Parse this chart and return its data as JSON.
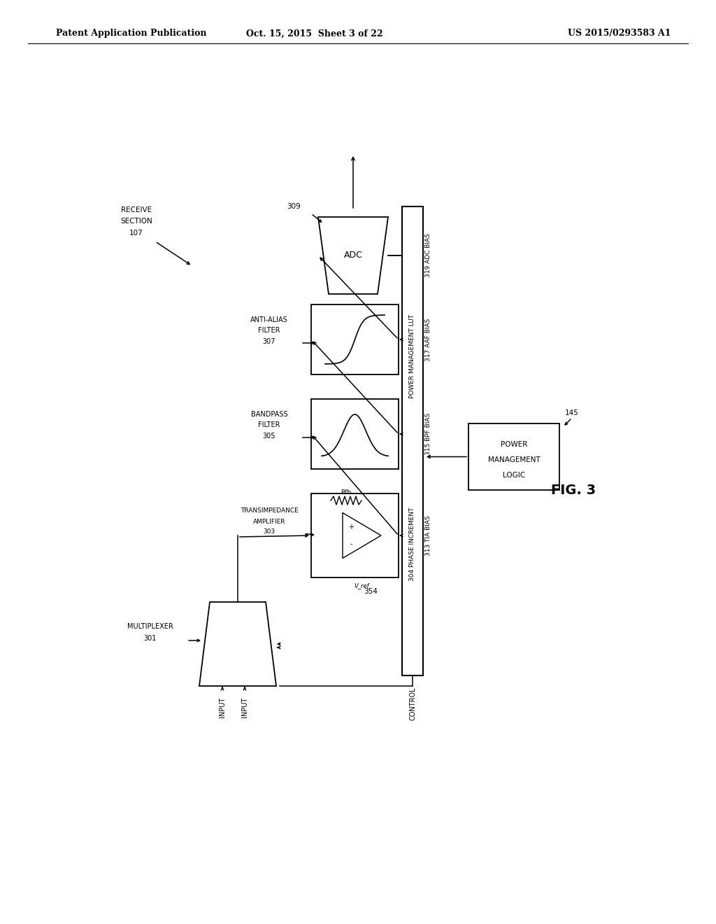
{
  "header_left": "Patent Application Publication",
  "header_center": "Oct. 15, 2015  Sheet 3 of 22",
  "header_right": "US 2015/0293583 A1",
  "fig_label": "FIG. 3",
  "background_color": "#ffffff"
}
